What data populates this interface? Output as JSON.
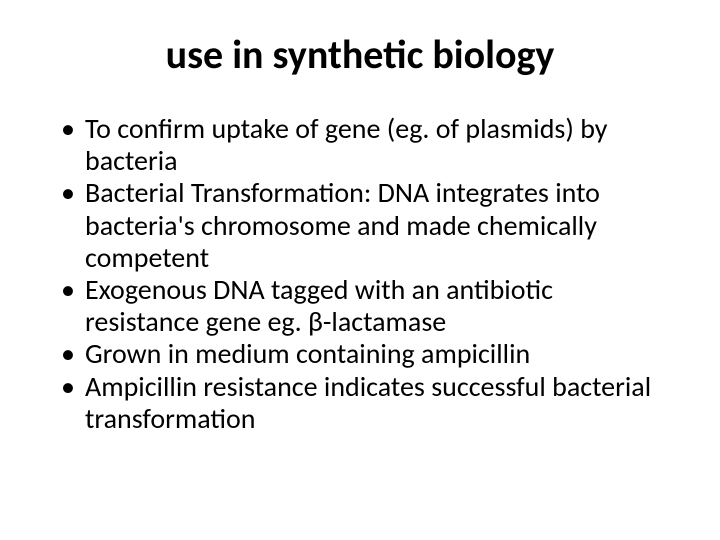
{
  "slide": {
    "title": "use in synthetic biology",
    "title_fontsize": 40,
    "title_weight": 700,
    "title_color": "#000000",
    "body_fontsize": 28,
    "body_color": "#000000",
    "background_color": "#ffffff",
    "font_family": "Calibri",
    "bullets": [
      "To confirm uptake of gene (eg. of plasmids) by bacteria",
      "Bacterial Transformation: DNA integrates into bacteria's chromosome and made chemically competent",
      "Exogenous DNA tagged with an antibiotic resistance gene eg. β-lactamase",
      "Grown in medium containing ampicillin",
      "Ampicillin resistance indicates successful bacterial transformation"
    ]
  }
}
